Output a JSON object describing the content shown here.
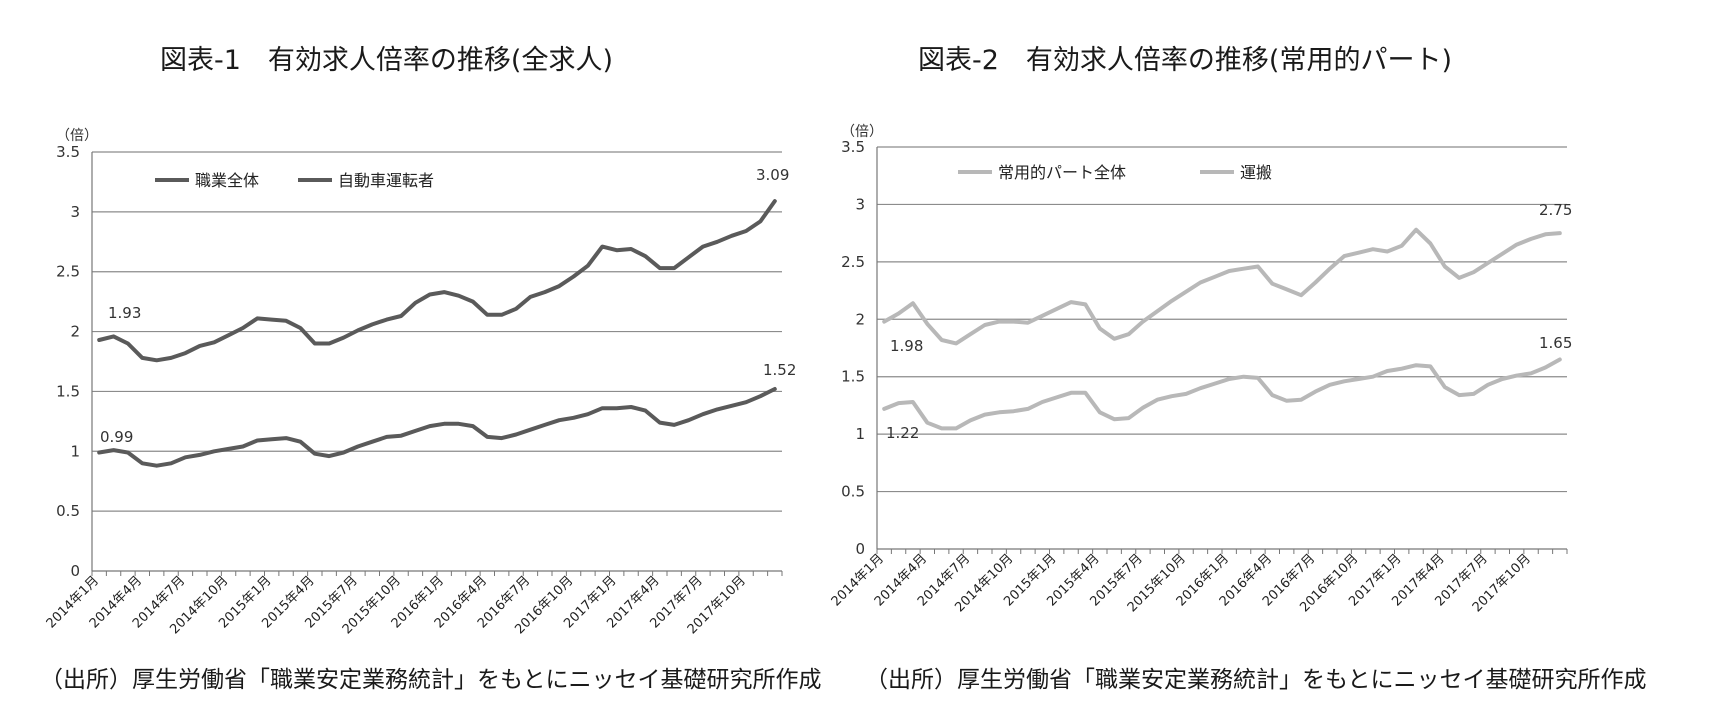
{
  "chart_data": [
    {
      "type": "line",
      "title": "図表-1　有効求人倍率の推移(全求人)",
      "unit": "（倍）",
      "ylim": [
        0,
        3.5
      ],
      "yticks": [
        "0",
        "0.5",
        "1",
        "1.5",
        "2",
        "2.5",
        "3",
        "3.5"
      ],
      "grid": true,
      "legend_position": "top-left",
      "x_labels": [
        "2014年1月",
        "2014年4月",
        "2014年7月",
        "2014年10月",
        "2015年1月",
        "2015年4月",
        "2015年7月",
        "2015年10月",
        "2016年1月",
        "2016年4月",
        "2016年7月",
        "2016年10月",
        "2017年1月",
        "2017年4月",
        "2017年7月",
        "2017年10月"
      ],
      "n_points": 48,
      "series": [
        {
          "name": "職業全体",
          "color": "#5a5a5a",
          "values": [
            0.99,
            1.01,
            0.99,
            0.9,
            0.88,
            0.9,
            0.95,
            0.97,
            1.0,
            1.02,
            1.04,
            1.09,
            1.1,
            1.11,
            1.08,
            0.98,
            0.96,
            0.99,
            1.04,
            1.08,
            1.12,
            1.13,
            1.17,
            1.21,
            1.23,
            1.23,
            1.21,
            1.12,
            1.11,
            1.14,
            1.18,
            1.22,
            1.26,
            1.28,
            1.31,
            1.36,
            1.36,
            1.37,
            1.34,
            1.24,
            1.22,
            1.26,
            1.31,
            1.35,
            1.38,
            1.41,
            1.46,
            1.52
          ]
        },
        {
          "name": "自動車運転者",
          "color": "#5a5a5a",
          "values": [
            1.93,
            1.96,
            1.9,
            1.78,
            1.76,
            1.78,
            1.82,
            1.88,
            1.91,
            1.97,
            2.03,
            2.11,
            2.1,
            2.09,
            2.03,
            1.9,
            1.9,
            1.95,
            2.01,
            2.06,
            2.1,
            2.13,
            2.24,
            2.31,
            2.33,
            2.3,
            2.25,
            2.14,
            2.14,
            2.19,
            2.29,
            2.33,
            2.38,
            2.46,
            2.55,
            2.71,
            2.68,
            2.69,
            2.63,
            2.53,
            2.53,
            2.62,
            2.71,
            2.75,
            2.8,
            2.84,
            2.92,
            3.09
          ]
        }
      ],
      "annotations": [
        "0.99",
        "1.93",
        "1.52",
        "3.09"
      ]
    },
    {
      "type": "line",
      "title": "図表-2　有効求人倍率の推移(常用的パート)",
      "unit": "（倍）",
      "ylim": [
        0,
        3.5
      ],
      "yticks": [
        "0",
        "0.5",
        "1",
        "1.5",
        "2",
        "2.5",
        "3",
        "3.5"
      ],
      "grid": true,
      "legend_position": "top-left",
      "x_labels": [
        "2014年1月",
        "2014年4月",
        "2014年7月",
        "2014年10月",
        "2015年1月",
        "2015年4月",
        "2015年7月",
        "2015年10月",
        "2016年1月",
        "2016年4月",
        "2016年7月",
        "2016年10月",
        "2017年1月",
        "2017年4月",
        "2017年7月",
        "2017年10月"
      ],
      "n_points": 48,
      "series": [
        {
          "name": "常用的パート全体",
          "color": "#b8b8b8",
          "values": [
            1.22,
            1.27,
            1.28,
            1.1,
            1.05,
            1.05,
            1.12,
            1.17,
            1.19,
            1.2,
            1.22,
            1.28,
            1.32,
            1.36,
            1.36,
            1.19,
            1.13,
            1.14,
            1.23,
            1.3,
            1.33,
            1.35,
            1.4,
            1.44,
            1.48,
            1.5,
            1.49,
            1.34,
            1.29,
            1.3,
            1.37,
            1.43,
            1.46,
            1.48,
            1.5,
            1.55,
            1.57,
            1.6,
            1.59,
            1.41,
            1.34,
            1.35,
            1.43,
            1.48,
            1.51,
            1.53,
            1.58,
            1.65
          ]
        },
        {
          "name": "運搬",
          "color": "#b8b8b8",
          "values": [
            1.98,
            2.05,
            2.14,
            1.96,
            1.82,
            1.79,
            1.87,
            1.95,
            1.98,
            1.98,
            1.97,
            2.03,
            2.09,
            2.15,
            2.13,
            1.92,
            1.83,
            1.87,
            1.98,
            2.07,
            2.16,
            2.24,
            2.32,
            2.37,
            2.42,
            2.44,
            2.46,
            2.31,
            2.26,
            2.21,
            2.32,
            2.44,
            2.55,
            2.58,
            2.61,
            2.59,
            2.64,
            2.78,
            2.66,
            2.46,
            2.36,
            2.41,
            2.49,
            2.57,
            2.65,
            2.7,
            2.74,
            2.75
          ]
        }
      ],
      "annotations": [
        "1.98",
        "1.22",
        "2.75",
        "1.65"
      ]
    }
  ],
  "source_text": "（出所）厚生労働省「職業安定業務統計」をもとにニッセイ基礎研究所作成"
}
